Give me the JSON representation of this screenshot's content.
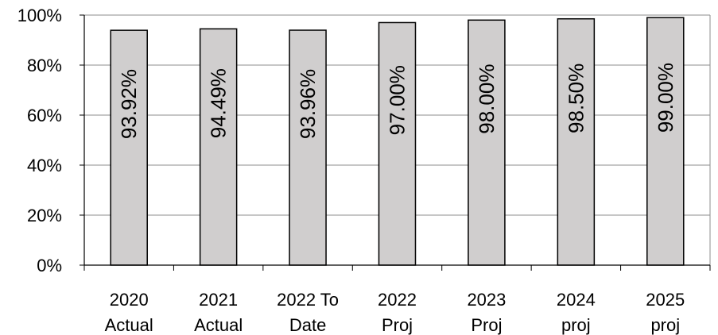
{
  "chart_data": {
    "type": "bar",
    "categories": [
      [
        "2020",
        "Actual"
      ],
      [
        "2021",
        "Actual"
      ],
      [
        "2022 To",
        "Date"
      ],
      [
        "2022",
        "Proj"
      ],
      [
        "2023",
        "Proj"
      ],
      [
        "2024",
        "proj"
      ],
      [
        "2025",
        "proj"
      ]
    ],
    "values": [
      93.92,
      94.49,
      93.96,
      97.0,
      98.0,
      98.5,
      99.0
    ],
    "data_labels": [
      "93.92%",
      "94.49%",
      "93.96%",
      "97.00%",
      "98.00%",
      "98.50%",
      "99.00%"
    ],
    "y_ticks": [
      "0%",
      "20%",
      "40%",
      "60%",
      "80%",
      "100%"
    ],
    "ylim": [
      0,
      100
    ],
    "grid": true,
    "legend": "none",
    "title": "",
    "xlabel": "",
    "ylabel": "",
    "colors": {
      "bar_fill": "#d0cece",
      "bar_stroke": "#000000",
      "grid": "#8c8c8c",
      "axis": "#000000"
    }
  }
}
